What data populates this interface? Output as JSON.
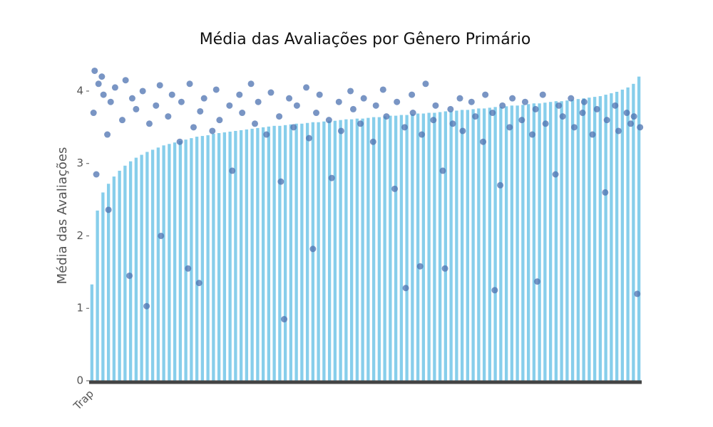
{
  "chart_data": {
    "type": "bar",
    "title": "Média das Avaliações por Gênero Primário",
    "ylabel": "Média das Avaliações",
    "categories": [
      "Trap",
      null,
      null,
      null,
      null,
      null,
      null,
      null,
      null,
      null,
      null,
      null,
      null,
      null,
      null,
      null,
      null,
      null,
      null,
      null,
      null,
      null,
      null,
      null,
      null,
      null,
      null,
      null,
      null,
      null,
      null,
      null,
      null,
      null,
      null,
      null,
      null,
      null,
      null,
      null,
      null,
      null,
      null,
      null,
      null,
      null,
      null,
      null,
      null,
      null,
      null,
      null,
      null,
      null,
      null,
      null,
      null,
      null,
      null,
      null,
      null,
      null,
      null,
      null,
      null,
      null,
      null,
      null,
      null,
      null,
      null,
      null,
      null,
      null,
      null,
      null,
      null,
      null,
      null,
      null,
      null,
      null,
      null,
      null,
      null,
      null,
      null,
      null,
      null,
      null,
      null,
      null,
      null,
      null,
      null,
      null,
      null,
      null,
      null,
      null
    ],
    "series": [
      {
        "type": "bar",
        "color": "#87ceeb",
        "values": [
          1.33,
          2.35,
          2.6,
          2.72,
          2.82,
          2.9,
          2.97,
          3.03,
          3.08,
          3.12,
          3.16,
          3.19,
          3.22,
          3.25,
          3.27,
          3.29,
          3.31,
          3.33,
          3.35,
          3.37,
          3.38,
          3.39,
          3.41,
          3.42,
          3.43,
          3.44,
          3.45,
          3.46,
          3.47,
          3.48,
          3.49,
          3.5,
          3.51,
          3.52,
          3.52,
          3.53,
          3.54,
          3.55,
          3.55,
          3.56,
          3.57,
          3.57,
          3.58,
          3.59,
          3.59,
          3.6,
          3.61,
          3.61,
          3.62,
          3.62,
          3.63,
          3.64,
          3.64,
          3.65,
          3.66,
          3.66,
          3.67,
          3.67,
          3.68,
          3.69,
          3.69,
          3.7,
          3.7,
          3.71,
          3.72,
          3.72,
          3.73,
          3.74,
          3.74,
          3.75,
          3.76,
          3.76,
          3.77,
          3.78,
          3.78,
          3.79,
          3.8,
          3.8,
          3.81,
          3.82,
          3.83,
          3.83,
          3.84,
          3.85,
          3.86,
          3.86,
          3.87,
          3.88,
          3.89,
          3.9,
          3.91,
          3.92,
          3.93,
          3.95,
          3.97,
          3.99,
          4.02,
          4.05,
          4.1,
          4.2
        ]
      },
      {
        "type": "scatter",
        "color": "#4c72b0",
        "x": [
          0.5,
          1.2,
          2.1,
          0.3,
          1.8,
          3.4,
          4.2,
          5.5,
          2.8,
          6.1,
          7.3,
          8.0,
          9.2,
          10.4,
          11.6,
          12.3,
          13.8,
          14.5,
          15.9,
          16.2,
          17.7,
          18.4,
          19.6,
          20.3,
          21.8,
          22.5,
          23.1,
          24.9,
          25.4,
          26.7,
          27.2,
          28.8,
          29.5,
          30.1,
          31.6,
          32.4,
          33.9,
          34.2,
          35.7,
          36.5,
          37.1,
          38.8,
          39.3,
          40.6,
          41.2,
          42.9,
          43.4,
          44.7,
          45.1,
          46.8,
          47.3,
          48.6,
          49.2,
          50.9,
          51.4,
          52.7,
          53.3,
          54.8,
          55.2,
          56.6,
          57.9,
          58.1,
          59.7,
          60.4,
          61.8,
          62.2,
          63.5,
          64.9,
          65.3,
          66.6,
          67.1,
          68.7,
          69.4,
          70.8,
          71.2,
          72.5,
          73.9,
          74.3,
          75.6,
          76.1,
          77.8,
          78.4,
          79.7,
          80.3,
          81.6,
          82.1,
          83.9,
          84.5,
          85.2,
          86.7,
          87.3,
          88.8,
          89.1,
          90.6,
          91.4,
          92.9,
          93.2,
          94.7,
          95.3,
          96.8,
          97.5,
          98.1,
          99.2,
          9.9,
          34.8,
          98.7,
          72.9,
          56.8,
          6.8,
          19.4,
          17.4,
          63.9,
          59.4,
          80.6,
          0.8,
          3.0,
          12.5,
          40.0
        ],
        "values": [
          4.28,
          4.1,
          3.95,
          3.7,
          4.2,
          3.85,
          4.05,
          3.6,
          3.4,
          4.15,
          3.9,
          3.75,
          4.0,
          3.55,
          3.8,
          4.08,
          3.65,
          3.95,
          3.3,
          3.85,
          4.1,
          3.5,
          3.72,
          3.9,
          3.45,
          4.02,
          3.6,
          3.8,
          2.9,
          3.95,
          3.7,
          4.1,
          3.55,
          3.85,
          3.4,
          3.98,
          3.65,
          2.75,
          3.9,
          3.5,
          3.8,
          4.05,
          3.35,
          3.7,
          3.95,
          3.6,
          2.8,
          3.85,
          3.45,
          4.0,
          3.75,
          3.55,
          3.9,
          3.3,
          3.8,
          4.02,
          3.65,
          2.65,
          3.85,
          3.5,
          3.95,
          3.7,
          3.4,
          4.1,
          3.6,
          3.8,
          2.9,
          3.75,
          3.55,
          3.9,
          3.45,
          3.85,
          3.65,
          3.3,
          3.95,
          3.7,
          2.7,
          3.8,
          3.5,
          3.9,
          3.6,
          3.85,
          3.4,
          3.75,
          3.95,
          3.55,
          2.85,
          3.8,
          3.65,
          3.9,
          3.5,
          3.7,
          3.85,
          3.4,
          3.75,
          2.6,
          3.6,
          3.8,
          3.45,
          3.7,
          3.55,
          3.65,
          3.5,
          1.03,
          0.85,
          1.2,
          1.25,
          1.28,
          1.45,
          1.35,
          1.55,
          1.55,
          1.58,
          1.37,
          2.85,
          2.36,
          2.0,
          1.82
        ]
      }
    ],
    "ylim": [
      0,
      4.33
    ],
    "yticks": [
      0,
      1,
      2,
      3,
      4
    ],
    "grid": false
  }
}
